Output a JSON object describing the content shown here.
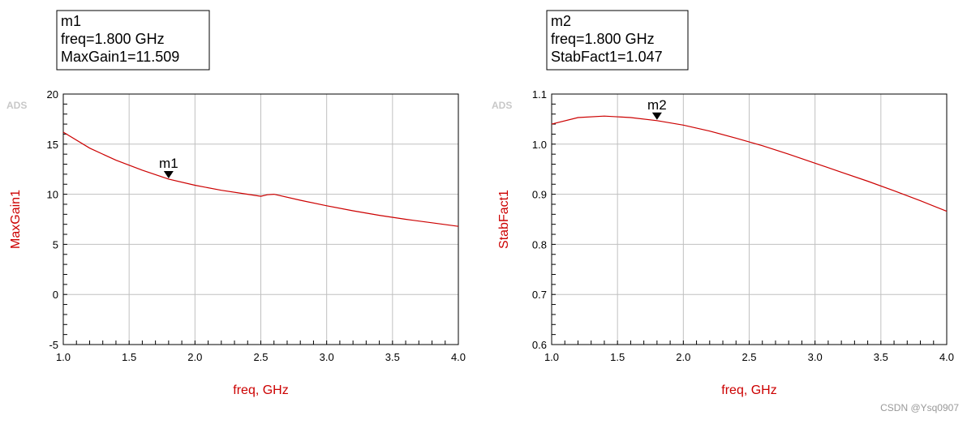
{
  "watermark": "CSDN @Ysq0907",
  "chart_data": [
    {
      "type": "line",
      "logo": "ADS",
      "xlabel": "freq, GHz",
      "ylabel": "MaxGain1",
      "xlim": [
        1.0,
        4.0
      ],
      "ylim": [
        -5,
        20
      ],
      "xticks": [
        1.0,
        1.5,
        2.0,
        2.5,
        3.0,
        3.5,
        4.0
      ],
      "xtick_labels": [
        "1.0",
        "1.5",
        "2.0",
        "2.5",
        "3.0",
        "3.5",
        "4.0"
      ],
      "yticks": [
        -5,
        0,
        5,
        10,
        15,
        20
      ],
      "ytick_labels": [
        "-5",
        "0",
        "5",
        "10",
        "15",
        "20"
      ],
      "grid": true,
      "color": "#cc0000",
      "series": [
        {
          "x": [
            1.0,
            1.2,
            1.4,
            1.6,
            1.8,
            2.0,
            2.2,
            2.4,
            2.5,
            2.55,
            2.6,
            2.8,
            3.0,
            3.2,
            3.4,
            3.6,
            3.8,
            4.0
          ],
          "values": [
            16.2,
            14.6,
            13.4,
            12.4,
            11.509,
            10.9,
            10.4,
            10.0,
            9.8,
            9.95,
            10.0,
            9.4,
            8.85,
            8.35,
            7.9,
            7.5,
            7.15,
            6.8
          ]
        }
      ],
      "marker": {
        "name": "m1",
        "x": 1.8,
        "y": 11.509,
        "lines": [
          "m1",
          "freq=1.800 GHz",
          "MaxGain1=11.509"
        ]
      }
    },
    {
      "type": "line",
      "logo": "ADS",
      "xlabel": "freq, GHz",
      "ylabel": "StabFact1",
      "xlim": [
        1.0,
        4.0
      ],
      "ylim": [
        0.6,
        1.1
      ],
      "xticks": [
        1.0,
        1.5,
        2.0,
        2.5,
        3.0,
        3.5,
        4.0
      ],
      "xtick_labels": [
        "1.0",
        "1.5",
        "2.0",
        "2.5",
        "3.0",
        "3.5",
        "4.0"
      ],
      "yticks": [
        0.6,
        0.7,
        0.8,
        0.9,
        1.0,
        1.1
      ],
      "ytick_labels": [
        "0.6",
        "0.7",
        "0.8",
        "0.9",
        "1.0",
        "1.1"
      ],
      "grid": true,
      "color": "#cc0000",
      "series": [
        {
          "x": [
            1.0,
            1.2,
            1.4,
            1.6,
            1.8,
            2.0,
            2.2,
            2.4,
            2.6,
            2.8,
            3.0,
            3.2,
            3.4,
            3.6,
            3.8,
            4.0
          ],
          "values": [
            1.04,
            1.053,
            1.056,
            1.053,
            1.047,
            1.038,
            1.026,
            1.012,
            0.997,
            0.98,
            0.962,
            0.944,
            0.926,
            0.907,
            0.887,
            0.866
          ]
        }
      ],
      "marker": {
        "name": "m2",
        "x": 1.8,
        "y": 1.047,
        "lines": [
          "m2",
          "freq=1.800 GHz",
          "StabFact1=1.047"
        ]
      }
    }
  ]
}
